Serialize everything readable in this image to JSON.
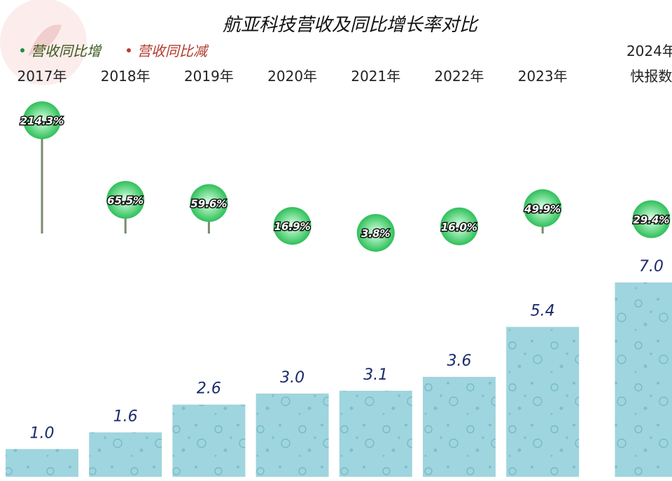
{
  "chart_data": {
    "type": "bar",
    "title": "航亚科技营收及同比增长率对比",
    "legend": {
      "placement": "top-left",
      "items": [
        {
          "label": "营收同比增",
          "color": "#1f8f3a"
        },
        {
          "label": "营收同比减",
          "color": "#c0392b"
        }
      ]
    },
    "categories": [
      {
        "line1": "",
        "line2": "2017年"
      },
      {
        "line1": "",
        "line2": "2018年"
      },
      {
        "line1": "",
        "line2": "2019年"
      },
      {
        "line1": "",
        "line2": "2020年"
      },
      {
        "line1": "",
        "line2": "2021年"
      },
      {
        "line1": "",
        "line2": "2022年"
      },
      {
        "line1": "",
        "line2": "2023年"
      },
      {
        "line1": "2024年",
        "line2": "快报数"
      }
    ],
    "series": [
      {
        "values": [
          1.0,
          1.6,
          2.6,
          3.0,
          3.1,
          3.6,
          5.4,
          7.0
        ],
        "labels": [
          "1.0",
          "1.6",
          "2.6",
          "3.0",
          "3.1",
          "3.6",
          "5.4",
          "7.0"
        ],
        "color": "#9fd5de"
      },
      {
        "values": [
          214.3,
          65.5,
          59.6,
          16.9,
          3.8,
          16.0,
          49.9,
          29.4
        ],
        "labels": [
          "214.3%",
          "65.5%",
          "59.6%",
          "16.9%",
          "3.8%",
          "16.0%",
          "49.9%",
          "29.4%"
        ],
        "color": "#3fcf6a"
      }
    ],
    "grid": false
  }
}
